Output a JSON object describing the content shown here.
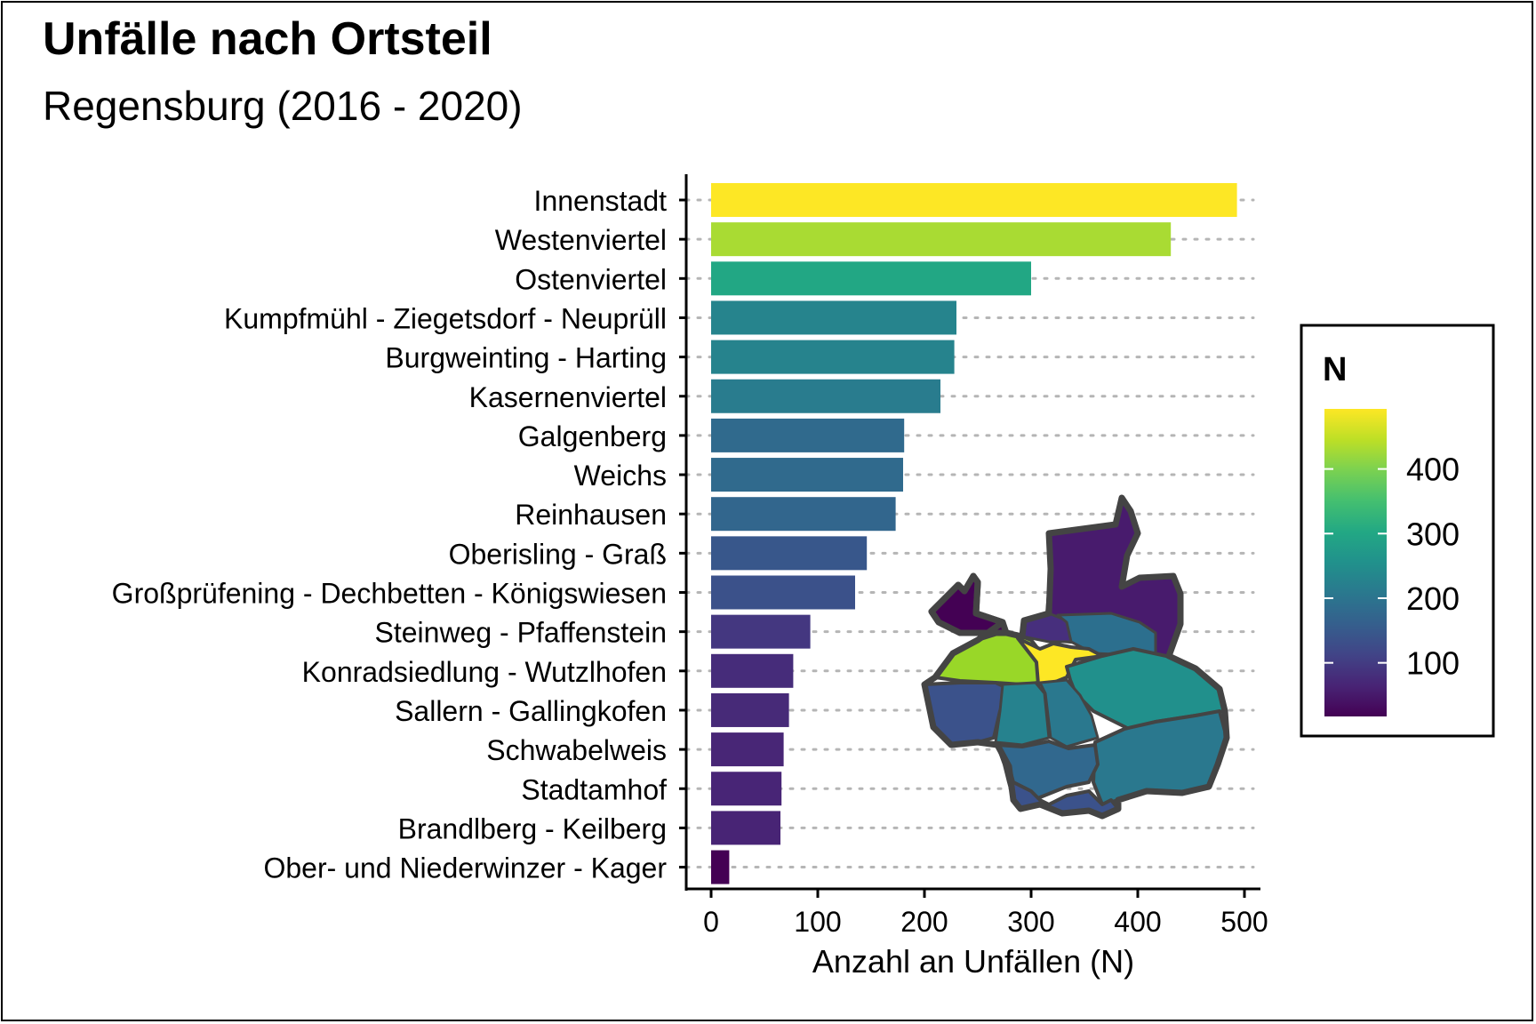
{
  "chart_data": {
    "type": "bar",
    "orientation": "horizontal",
    "title": "Unfälle nach Ortsteil",
    "subtitle": "Regensburg (2016 - 2020)",
    "xlabel": "Anzahl an Unfällen (N)",
    "ylabel": "",
    "xlim": [
      0,
      510
    ],
    "x_ticks": [
      0,
      100,
      200,
      300,
      400,
      500
    ],
    "grid": "horizontal dotted",
    "categories": [
      "Innenstadt",
      "Westenviertel",
      "Ostenviertel",
      "Kumpfmühl - Ziegetsdorf - Neuprüll",
      "Burgweinting - Harting",
      "Kasernenviertel",
      "Galgenberg",
      "Weichs",
      "Reinhausen",
      "Oberisling - Graß",
      "Großprüfening - Dechbetten - Königswiesen",
      "Steinweg - Pfaffenstein",
      "Konradsiedlung - Wutzlhofen",
      "Sallern - Gallingkofen",
      "Schwabelweis",
      "Stadtamhof",
      "Brandlberg - Keilberg",
      "Ober- und Niederwinzer - Kager"
    ],
    "values": [
      493,
      431,
      300,
      230,
      228,
      215,
      181,
      180,
      173,
      146,
      135,
      93,
      77,
      73,
      68,
      66,
      65,
      17
    ],
    "colorscale": "viridis",
    "legend": {
      "title": "N",
      "position": "right",
      "range": [
        17,
        493
      ],
      "ticks": [
        100,
        200,
        300,
        400
      ]
    }
  }
}
